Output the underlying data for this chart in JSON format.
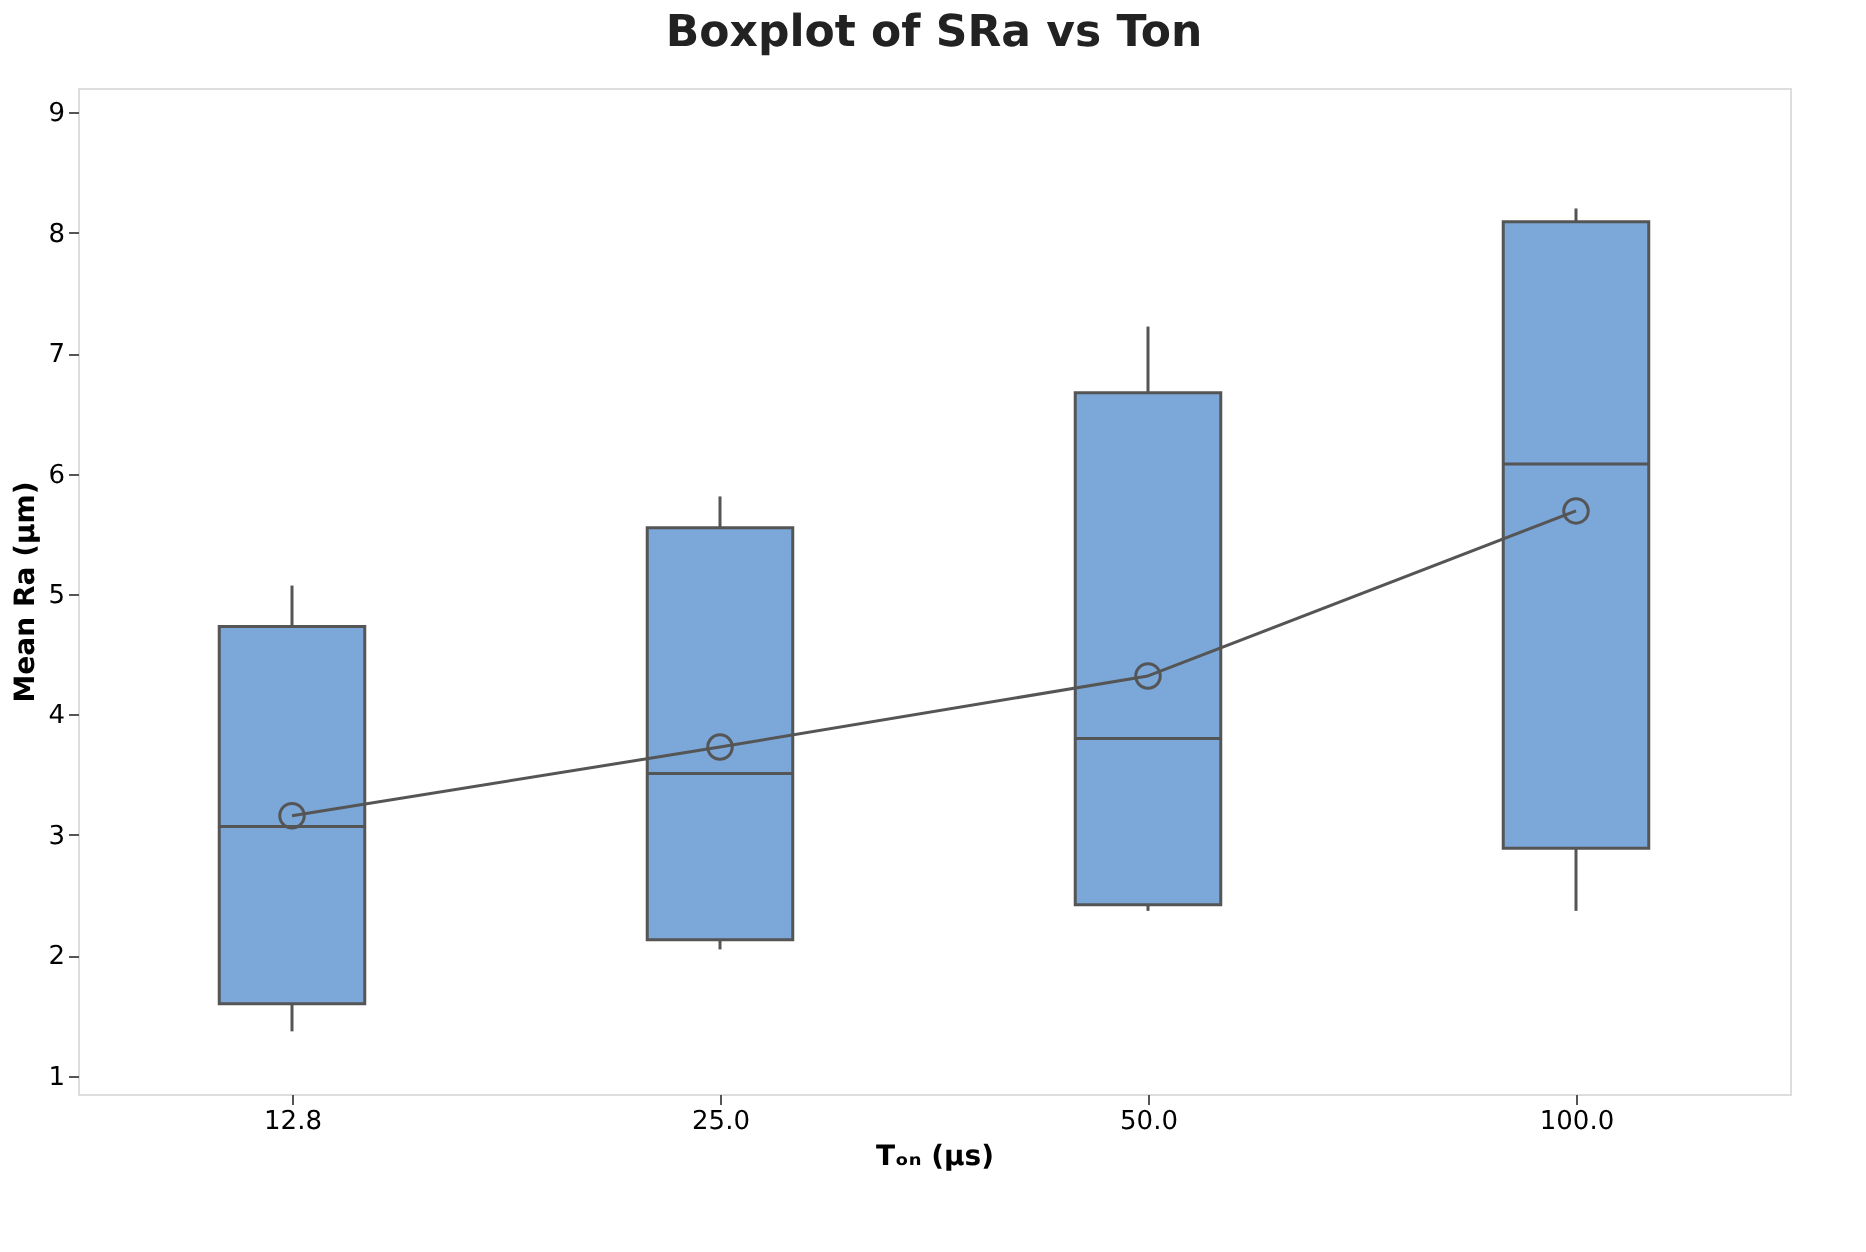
{
  "chart_data": {
    "type": "box",
    "title": "Boxplot of SRa vs Ton",
    "xlabel": "Tₒₙ (µs)",
    "ylabel": "Mean Ra (µm)",
    "categories": [
      "12.8",
      "25.0",
      "50.0",
      "100.0"
    ],
    "color": "#7ba7d9",
    "boxes": [
      {
        "low": 1.37,
        "q1": 1.6,
        "median": 3.07,
        "q3": 4.73,
        "high": 5.07
      },
      {
        "low": 2.05,
        "q1": 2.13,
        "median": 3.51,
        "q3": 5.55,
        "high": 5.81
      },
      {
        "low": 2.37,
        "q1": 2.42,
        "median": 3.8,
        "q3": 6.67,
        "high": 7.22
      },
      {
        "low": 2.37,
        "q1": 2.89,
        "median": 6.08,
        "q3": 8.09,
        "high": 8.2
      }
    ],
    "series": [
      {
        "type": "line",
        "color": "#555555",
        "marker": "circle",
        "x": [
          "12.8",
          "25.0",
          "50.0",
          "100.0"
        ],
        "values": [
          3.16,
          3.73,
          4.32,
          5.69
        ]
      }
    ],
    "ylim": [
      0.85,
      9.2
    ],
    "yticks": [
      1,
      2,
      3,
      4,
      5,
      6,
      7,
      8,
      9
    ],
    "grid": false
  }
}
